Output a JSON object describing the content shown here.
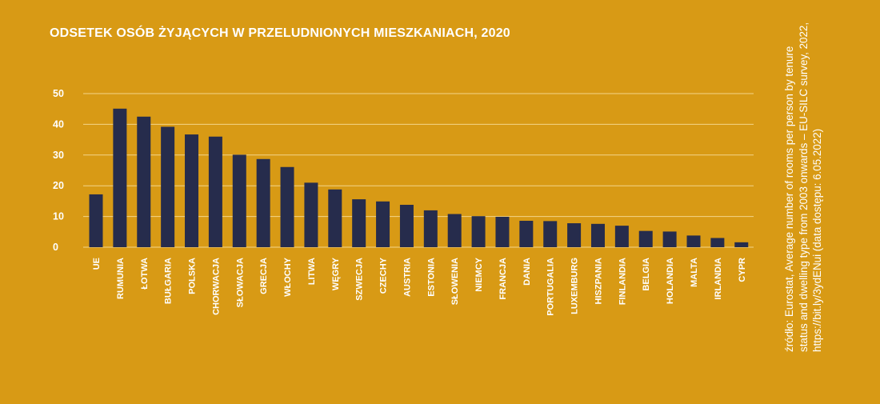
{
  "chart_data": {
    "type": "bar",
    "title": "ODSETEK OSÓB ŻYJĄCYCH W PRZELUDNIONYCH MIESZKANIACH, 2020",
    "categories": [
      "UE",
      "RUMUNIA",
      "ŁOTWA",
      "BUŁGARIA",
      "POLSKA",
      "CHORWACJA",
      "SŁOWACJA",
      "GRECJA",
      "WŁOCHY",
      "LITWA",
      "WĘGRY",
      "SZWECJA",
      "CZECHY",
      "AUSTRIA",
      "ESTONIA",
      "SŁOWENIA",
      "NIEMCY",
      "FRANCJA",
      "DANIA",
      "PORTUGALIA",
      "LUXEMBURG",
      "HISZPANIA",
      "FINLANDIA",
      "BELGIA",
      "HOLANDIA",
      "MALTA",
      "IRLANDIA",
      "CYPR"
    ],
    "values": [
      17.2,
      45.1,
      42.5,
      39.2,
      36.7,
      36.0,
      30.1,
      28.7,
      26.1,
      21.0,
      18.8,
      15.6,
      14.9,
      13.8,
      12.0,
      10.8,
      10.1,
      9.9,
      8.6,
      8.5,
      7.8,
      7.6,
      7.0,
      5.3,
      5.1,
      3.8,
      3.0,
      1.6
    ],
    "ylim": [
      0,
      50
    ],
    "yticks": [
      0,
      10,
      20,
      30,
      40,
      50
    ],
    "grid": true,
    "colors": {
      "background": "#D89A15",
      "bar": "#262C4C",
      "text": "#FFFFFF",
      "gridline": "#F3D489"
    }
  },
  "source_note": "źródło: Eurostat, Average number of rooms per person by tenure status and dwelling type from 2003 onwards – EU-SILC survey, 2022, https://bit.ly/3ydENui (data dostępu: 6.05.2022)"
}
